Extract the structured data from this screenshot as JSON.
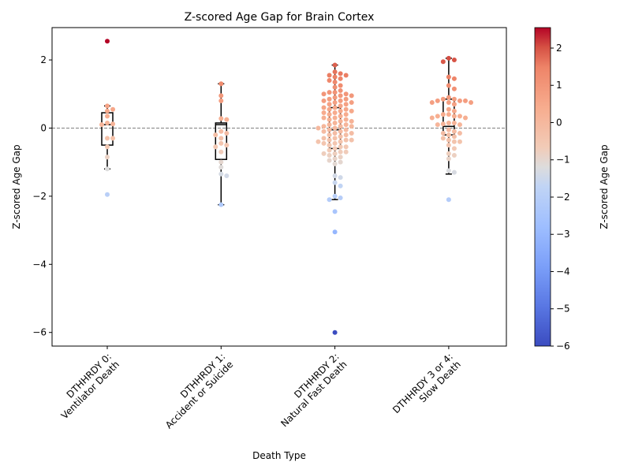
{
  "chart_data": {
    "type": "scatter",
    "subtype": "swarm with box plots",
    "title": "Z-scored Age Gap for Brain Cortex",
    "xlabel": "Death Type",
    "ylabel": "Z-scored Age Gap",
    "ylim": [
      -6.4,
      2.95
    ],
    "yticks": [
      2,
      0,
      -2,
      -4,
      -6
    ],
    "ytick_labels": [
      "2",
      "0",
      "−2",
      "−4",
      "−6"
    ],
    "reference_line": {
      "y": 0,
      "style": "dashed",
      "color": "#808080"
    },
    "colormap": "coolwarm",
    "colorbar": {
      "label": "Z-scored Age Gap",
      "min": -6,
      "max": 2.55,
      "ticks": [
        2,
        1,
        0,
        -1,
        -2,
        -3,
        -4,
        -5,
        -6
      ],
      "tick_labels": [
        "2",
        "1",
        "0",
        "−1",
        "−2",
        "−3",
        "−4",
        "−5",
        "−6"
      ]
    },
    "categories": [
      {
        "label_line1": "DTHHRDY 0:",
        "label_line2": "Ventilator Death",
        "box": {
          "q1": -0.5,
          "median": 0.1,
          "q3": 0.45,
          "whisker_low": -1.2,
          "whisker_high": 0.65
        },
        "values": [
          2.55,
          0.65,
          0.55,
          0.5,
          0.35,
          0.15,
          0.12,
          0.1,
          -0.3,
          -0.3,
          -0.55,
          -0.85,
          -1.2,
          -1.95
        ]
      },
      {
        "label_line1": "DTHHRDY 1:",
        "label_line2": "Accident or Suicide",
        "box": {
          "q1": -0.92,
          "median": 0.1,
          "q3": 0.15,
          "whisker_low": -2.25,
          "whisker_high": 1.3
        },
        "values": [
          1.3,
          0.95,
          0.8,
          0.28,
          0.25,
          -0.1,
          -0.15,
          -0.2,
          -0.3,
          -0.45,
          -0.5,
          -0.55,
          -0.7,
          -1.0,
          -1.15,
          -1.35,
          -1.4,
          -2.25
        ]
      },
      {
        "label_line1": "DTHHRDY 2:",
        "label_line2": "Natural Fast Death",
        "box": {
          "q1": -0.6,
          "median": -0.05,
          "q3": 0.6,
          "whisker_low": -2.1,
          "whisker_high": 1.85
        },
        "values": [
          1.85,
          1.65,
          1.6,
          1.55,
          1.55,
          1.5,
          1.45,
          1.4,
          1.35,
          1.25,
          1.2,
          1.1,
          1.05,
          1.05,
          1.0,
          1.0,
          0.95,
          0.95,
          0.9,
          0.85,
          0.85,
          0.8,
          0.8,
          0.75,
          0.75,
          0.7,
          0.7,
          0.65,
          0.6,
          0.6,
          0.55,
          0.55,
          0.5,
          0.5,
          0.45,
          0.45,
          0.4,
          0.4,
          0.35,
          0.3,
          0.3,
          0.25,
          0.25,
          0.2,
          0.2,
          0.15,
          0.1,
          0.1,
          0.05,
          0.05,
          0.05,
          0.0,
          0.0,
          -0.05,
          -0.05,
          -0.1,
          -0.1,
          -0.15,
          -0.15,
          -0.2,
          -0.2,
          -0.25,
          -0.3,
          -0.3,
          -0.35,
          -0.35,
          -0.35,
          -0.4,
          -0.4,
          -0.45,
          -0.45,
          -0.5,
          -0.55,
          -0.55,
          -0.6,
          -0.65,
          -0.7,
          -0.7,
          -0.75,
          -0.75,
          -0.8,
          -0.85,
          -0.9,
          -0.95,
          -1.0,
          -1.05,
          -1.4,
          -1.45,
          -1.6,
          -1.7,
          -2.0,
          -2.05,
          -2.1,
          -2.45,
          -3.05,
          -6.0
        ]
      },
      {
        "label_line1": "DTHHRDY 3 or 4:",
        "label_line2": "Slow Death",
        "box": {
          "q1": -0.2,
          "median": 0.05,
          "q3": 0.85,
          "whisker_low": -1.35,
          "whisker_high": 2.05
        },
        "values": [
          2.05,
          2.0,
          1.95,
          1.5,
          1.45,
          1.25,
          1.15,
          0.9,
          0.85,
          0.85,
          0.8,
          0.8,
          0.8,
          0.75,
          0.75,
          0.75,
          0.7,
          0.55,
          0.5,
          0.4,
          0.4,
          0.35,
          0.35,
          0.35,
          0.3,
          0.3,
          0.15,
          0.15,
          0.12,
          0.1,
          0.1,
          -0.05,
          -0.1,
          -0.15,
          -0.15,
          -0.2,
          -0.25,
          -0.3,
          -0.35,
          -0.4,
          -0.4,
          -0.5,
          -0.6,
          -0.75,
          -0.8,
          -0.9,
          -1.25,
          -1.3,
          -2.1
        ]
      }
    ]
  }
}
